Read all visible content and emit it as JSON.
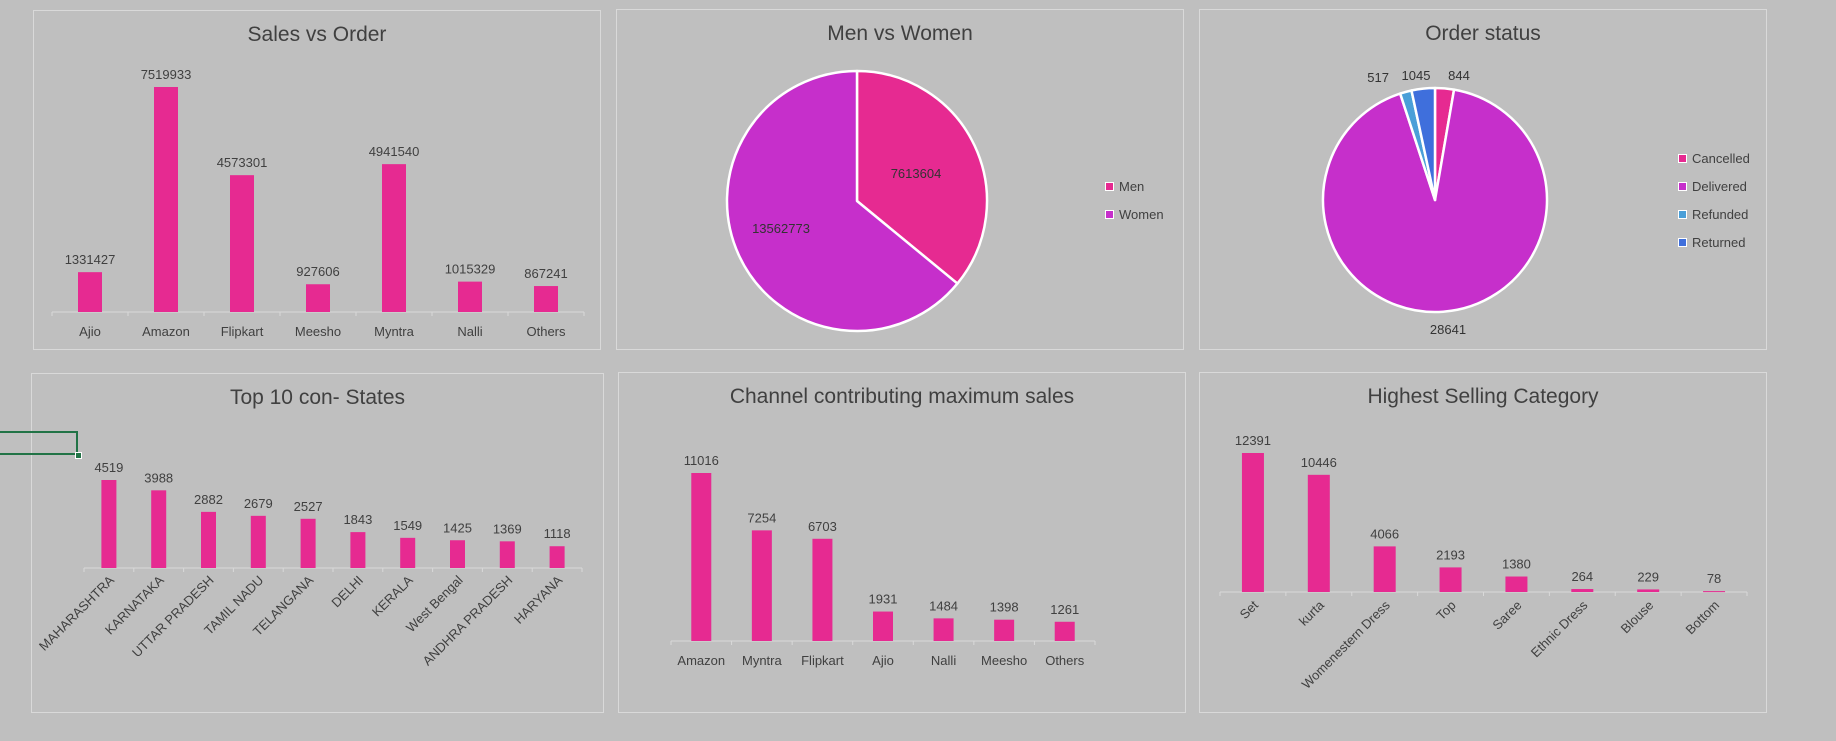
{
  "colors": {
    "bar": "#e62a91",
    "women": "#c62fcb",
    "men": "#e62a91",
    "cancelled": "#e62a91",
    "delivered": "#c62fcb",
    "refunded": "#4a9fd8",
    "returned": "#3f6fdc",
    "text": "#404040",
    "axis": "#d9d9d9"
  },
  "chart_data": [
    {
      "id": "sales-vs-order",
      "type": "bar",
      "title": "Sales vs Order",
      "categories": [
        "Ajio",
        "Amazon",
        "Flipkart",
        "Meesho",
        "Myntra",
        "Nalli",
        "Others"
      ],
      "values": [
        1331427,
        7519933,
        4573301,
        927606,
        4941540,
        1015329,
        867241
      ],
      "ylim": [
        0,
        7519933
      ],
      "grid": false
    },
    {
      "id": "men-vs-women",
      "type": "pie",
      "title": "Men vs Women",
      "labels": [
        "Men",
        "Women"
      ],
      "values": [
        7613604,
        13562773
      ],
      "legend": "right"
    },
    {
      "id": "order-status",
      "type": "pie",
      "title": "Order status",
      "labels": [
        "Cancelled",
        "Delivered",
        "Refunded",
        "Returned"
      ],
      "values": [
        844,
        28641,
        517,
        1045
      ],
      "legend": "right"
    },
    {
      "id": "top-states",
      "type": "bar",
      "title": "Top 10 con- States",
      "categories": [
        "MAHARASHTRA",
        "KARNATAKA",
        "UTTAR PRADESH",
        "TAMIL NADU",
        "TELANGANA",
        "DELHI",
        "KERALA",
        "West Bengal",
        "ANDHRA PRADESH",
        "HARYANA"
      ],
      "values": [
        4519,
        3988,
        2882,
        2679,
        2527,
        1843,
        1549,
        1425,
        1369,
        1118
      ],
      "ylim": [
        0,
        4519
      ],
      "grid": false
    },
    {
      "id": "channel-max-sales",
      "type": "bar",
      "title": "Channel contributing maximum sales",
      "categories": [
        "Amazon",
        "Myntra",
        "Flipkart",
        "Ajio",
        "Nalli",
        "Meesho",
        "Others"
      ],
      "values": [
        11016,
        7254,
        6703,
        1931,
        1484,
        1398,
        1261
      ],
      "ylim": [
        0,
        11016
      ],
      "grid": false
    },
    {
      "id": "highest-selling-category",
      "type": "bar",
      "title": "Highest Selling Category",
      "categories": [
        "Set",
        "kurta",
        "Womenestern Dress",
        "Top",
        "Saree",
        "Ethnic Dress",
        "Blouse",
        "Bottom"
      ],
      "values": [
        12391,
        10446,
        4066,
        2193,
        1380,
        264,
        229,
        78
      ],
      "ylim": [
        0,
        12391
      ],
      "grid": false
    }
  ]
}
